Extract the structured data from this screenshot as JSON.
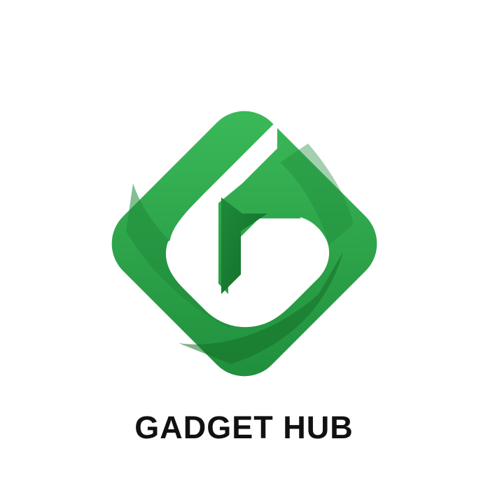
{
  "logo": {
    "icon_name": "gadget-hub-g-logo-icon",
    "colors": {
      "light_green": "#34b252",
      "mid_green": "#24923f",
      "dark_green": "#17722d",
      "background": "#ffffff"
    }
  },
  "brand": {
    "name": "GADGET HUB"
  }
}
